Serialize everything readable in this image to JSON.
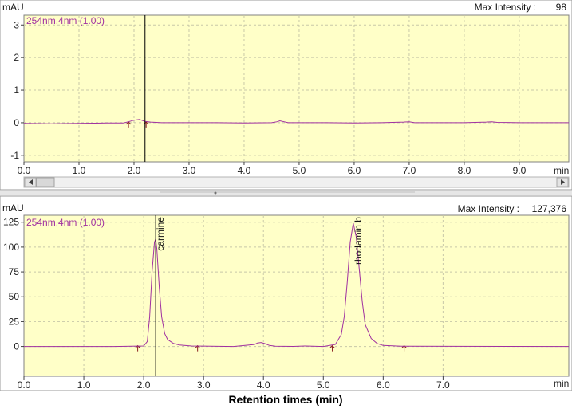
{
  "colors": {
    "plot_bg": "#ffffc8",
    "trace": "#a030a0",
    "grid": "#c8c8a8",
    "marker": "#8b2020",
    "cursor": "#000000",
    "frame": "#808080"
  },
  "caption": "Retention times (min)",
  "chart_data": [
    {
      "type": "line",
      "ylabel": "mAU",
      "xlabel": "min",
      "channel_label": "254nm,4nm (1.00)",
      "max_intensity_label": "Max Intensity :",
      "max_intensity_value": "98",
      "xlim": [
        0.0,
        9.9
      ],
      "ylim": [
        -1.2,
        3.3
      ],
      "x_ticks": [
        0,
        1,
        2,
        3,
        4,
        5,
        6,
        7,
        8,
        9
      ],
      "x_tick_labels": [
        "0.0",
        "1.0",
        "2.0",
        "3.0",
        "4.0",
        "5.0",
        "6.0",
        "7.0",
        "8.0",
        "9.0"
      ],
      "y_ticks": [
        -1,
        0,
        1,
        2,
        3
      ],
      "y_tick_labels": [
        "-1",
        "0",
        "1",
        "2",
        "3"
      ],
      "grid": true,
      "cursor_x": 2.2,
      "series": [
        {
          "x": [
            0.0,
            0.5,
            1.0,
            1.5,
            1.8,
            1.9,
            2.0,
            2.1,
            2.2,
            2.3,
            2.5,
            3.0,
            3.5,
            4.0,
            4.5,
            4.6,
            4.65,
            4.7,
            4.8,
            5.0,
            5.5,
            6.0,
            6.5,
            6.9,
            7.0,
            7.1,
            7.5,
            8.0,
            8.4,
            8.5,
            8.6,
            9.0,
            9.5,
            9.9
          ],
          "y": [
            -0.02,
            -0.03,
            -0.02,
            -0.01,
            -0.01,
            0.03,
            0.08,
            0.1,
            0.04,
            0.02,
            0.0,
            0.0,
            0.0,
            -0.01,
            0.0,
            0.03,
            0.06,
            0.04,
            0.0,
            0.0,
            0.0,
            -0.01,
            0.0,
            0.02,
            0.03,
            0.0,
            0.0,
            0.0,
            0.02,
            0.03,
            0.01,
            0.0,
            0.0,
            0.0
          ]
        }
      ],
      "integration_markers": [
        1.9,
        2.22
      ]
    },
    {
      "type": "line",
      "ylabel": "mAU",
      "xlabel": "min",
      "channel_label": "254nm,4nm (1.00)",
      "max_intensity_label": "Max Intensity :",
      "max_intensity_value": "127,376",
      "xlim": [
        0.0,
        9.1
      ],
      "ylim": [
        -30,
        132
      ],
      "x_ticks": [
        0,
        1,
        2,
        3,
        4,
        5,
        6,
        7
      ],
      "x_tick_labels": [
        "0.0",
        "1.0",
        "2.0",
        "3.0",
        "4.0",
        "5.0",
        "6.0",
        "7.0"
      ],
      "y_ticks": [
        0,
        25,
        50,
        75,
        100,
        125
      ],
      "y_tick_labels": [
        "0",
        "25",
        "50",
        "75",
        "100",
        "125"
      ],
      "grid": true,
      "cursor_x": 2.2,
      "series": [
        {
          "x": [
            0.0,
            1.5,
            2.0,
            2.06,
            2.1,
            2.14,
            2.18,
            2.2,
            2.22,
            2.26,
            2.3,
            2.35,
            2.4,
            2.5,
            2.6,
            2.8,
            3.5,
            3.85,
            3.9,
            3.96,
            4.02,
            4.1,
            4.2,
            4.5,
            4.7,
            5.0,
            5.2,
            5.3,
            5.35,
            5.4,
            5.45,
            5.5,
            5.55,
            5.6,
            5.65,
            5.7,
            5.8,
            5.9,
            6.0,
            6.3,
            9.1
          ],
          "y": [
            0,
            0,
            0.5,
            5,
            30,
            75,
            105,
            108,
            98,
            60,
            30,
            13,
            7,
            3,
            1.5,
            0.5,
            0,
            2,
            3.5,
            4,
            3,
            1,
            0.3,
            0.1,
            0.5,
            0,
            2,
            12,
            30,
            65,
            105,
            124,
            110,
            78,
            45,
            22,
            8,
            3,
            1,
            0.3,
            0
          ]
        }
      ],
      "peaks": [
        {
          "name": "carmine",
          "rt": 2.2
        },
        {
          "name": "rhodamin b",
          "rt": 5.5
        }
      ],
      "integration_markers": [
        1.9,
        2.9,
        5.15,
        6.35
      ]
    }
  ]
}
